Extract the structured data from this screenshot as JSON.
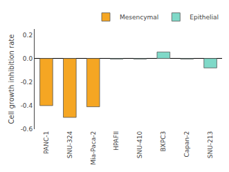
{
  "chart_data": {
    "type": "bar",
    "ylabel": "Cell growth inhibition rate",
    "categories": [
      "PANC-1",
      "SNU-324",
      "Mia-Paca-2",
      "HPAFII",
      "SNU-410",
      "BXPC3",
      "Capan-2",
      "SNU-213"
    ],
    "series": [
      {
        "name": "Mesencymal",
        "color": "#F5A623",
        "values": [
          -0.4,
          -0.5,
          -0.41,
          null,
          null,
          null,
          null,
          null
        ]
      },
      {
        "name": "Epithelial",
        "color": "#7FD9C8",
        "values": [
          null,
          null,
          null,
          -0.005,
          -0.005,
          0.055,
          -0.005,
          -0.08
        ]
      }
    ],
    "ylim": [
      -0.6,
      0.25
    ],
    "yticks": [
      -0.6,
      -0.4,
      -0.2,
      {
        "value": 0.0,
        "label": "0.0"
      },
      0.2
    ],
    "grid": false,
    "legend": "upper right"
  }
}
